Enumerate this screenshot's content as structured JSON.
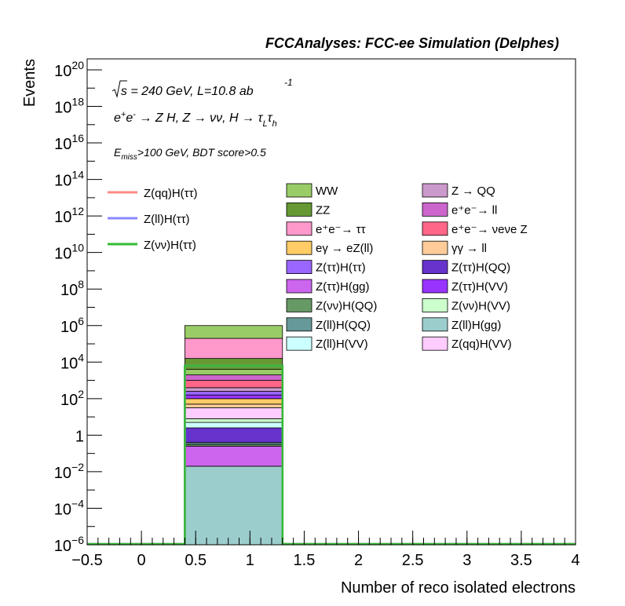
{
  "chart_data": {
    "type": "bar",
    "title": "FCCAnalyses: FCC-ee Simulation (Delphes)",
    "xlabel": "Number of reco isolated electrons",
    "ylabel": "Events",
    "xlim": [
      -0.5,
      4
    ],
    "ylim_log10": [
      -6,
      20.6
    ],
    "log_y": true,
    "grid": false,
    "x_ticks": [
      "−0.5",
      "0",
      "0.5",
      "1",
      "1.5",
      "2",
      "2.5",
      "3",
      "3.5",
      "4"
    ],
    "y_ticks": [
      {
        "base": "10",
        "exp": "20"
      },
      {
        "base": "10",
        "exp": "18"
      },
      {
        "base": "10",
        "exp": "16"
      },
      {
        "base": "10",
        "exp": "14"
      },
      {
        "base": "10",
        "exp": "12"
      },
      {
        "base": "10",
        "exp": "10"
      },
      {
        "base": "10",
        "exp": "8"
      },
      {
        "base": "10",
        "exp": "6"
      },
      {
        "base": "10",
        "exp": "4"
      },
      {
        "base": "10",
        "exp": "2"
      },
      {
        "base": "",
        "exp": "1"
      },
      {
        "base": "10",
        "exp": "−2"
      },
      {
        "base": "10",
        "exp": "−4"
      },
      {
        "base": "10",
        "exp": "−6"
      }
    ],
    "annotations": {
      "energy": "√s = 240 GeV, L=10.8 ab",
      "lumi_exp": "-1",
      "process": "e⁺e⁻ → Z H, Z → νν, H → τLτh",
      "cuts": "Emiss>100 GeV, BDT score>0.5"
    },
    "bin": [
      0.4,
      1.3
    ],
    "stack": [
      {
        "name": "Z(ll)H(gg)",
        "color": "#9ccdcd",
        "bottom_log10": -6.0,
        "top_log10": -1.7
      },
      {
        "name": "Z(ττ)H(gg)",
        "color": "#cc66ee",
        "bottom_log10": -1.7,
        "top_log10": -0.6
      },
      {
        "name": "Z(νν)H(QQ)",
        "color": "#669966",
        "bottom_log10": -0.6,
        "top_log10": -0.5
      },
      {
        "name": "Z(ll)H(QQ)",
        "color": "#669999",
        "bottom_log10": -0.5,
        "top_log10": -0.4
      },
      {
        "name": "Z(ττ)H(QQ)",
        "color": "#6633cc",
        "bottom_log10": -0.4,
        "top_log10": 0.4
      },
      {
        "name": "Z(ll)H(VV)",
        "color": "#ccffff",
        "bottom_log10": 0.4,
        "top_log10": 0.7
      },
      {
        "name": "Z(νν)H(VV)",
        "color": "#ccffcc",
        "bottom_log10": 0.7,
        "top_log10": 0.9
      },
      {
        "name": "Z(qq)H(VV)",
        "color": "#ffccff",
        "bottom_log10": 0.9,
        "top_log10": 1.5
      },
      {
        "name": "γγ → ll",
        "color": "#ffcc99",
        "bottom_log10": 1.5,
        "top_log10": 1.7
      },
      {
        "name": "eγ → eZ(ll)",
        "color": "#ffcc66",
        "bottom_log10": 1.7,
        "top_log10": 2.0
      },
      {
        "name": "Z(ττ)H(VV)",
        "color": "#9933ff",
        "bottom_log10": 2.0,
        "top_log10": 2.2
      },
      {
        "name": "Z(ττ)H(ττ)",
        "color": "#9966ff",
        "bottom_log10": 2.2,
        "top_log10": 2.4
      },
      {
        "name": "Z → QQ",
        "color": "#cc99cc",
        "bottom_log10": 2.4,
        "top_log10": 2.6
      },
      {
        "name": "e⁺e⁻ → νeνe Z",
        "color": "#ff6688",
        "bottom_log10": 2.6,
        "top_log10": 3.0
      },
      {
        "name": "e⁺e⁻ → ll",
        "color": "#cc66cc",
        "bottom_log10": 3.0,
        "top_log10": 3.3
      },
      {
        "name": "WW",
        "color": "#99cc66",
        "bottom_log10": 3.3,
        "top_log10": 3.6
      },
      {
        "name": "ZZ",
        "color": "#669933",
        "bottom_log10": 3.6,
        "top_log10": 4.2
      },
      {
        "name": "e⁺e⁻ → ττ",
        "color": "#ff99cc",
        "bottom_log10": 4.2,
        "top_log10": 5.3
      },
      {
        "name": "WW",
        "color": "#99cc66",
        "bottom_log10": 5.3,
        "top_log10": 6.0
      }
    ],
    "signal_lines": [
      {
        "name": "Z(qq)H(ττ)",
        "color": "#ff8888",
        "value_log10": 3.8
      },
      {
        "name": "Z(ll)H(ττ)",
        "color": "#8888ff",
        "value_log10": 3.8
      },
      {
        "name": "Z(νν)H(ττ)",
        "color": "#33bb33",
        "value_log10": 3.8
      }
    ],
    "legend": {
      "lines": [
        {
          "label": "Z(qq)H(ττ)",
          "color": "#ff8888"
        },
        {
          "label": "Z(ll)H(ττ)",
          "color": "#8888ff"
        },
        {
          "label": "Z(νν)H(ττ)",
          "color": "#33bb33"
        }
      ],
      "col1": [
        {
          "label": "WW",
          "color": "#99cc66"
        },
        {
          "label": "ZZ",
          "color": "#669933"
        },
        {
          "label": "e⁺e⁻→ ττ",
          "color": "#ff99cc"
        },
        {
          "label": "eγ → eZ(ll)",
          "color": "#ffcc66"
        },
        {
          "label": "Z(ττ)H(ττ)",
          "color": "#9966ff"
        },
        {
          "label": "Z(ττ)H(gg)",
          "color": "#cc66ee"
        },
        {
          "label": "Z(νν)H(QQ)",
          "color": "#669966"
        },
        {
          "label": "Z(ll)H(QQ)",
          "color": "#669999"
        },
        {
          "label": "Z(ll)H(VV)",
          "color": "#ccffff"
        }
      ],
      "col2": [
        {
          "label": "Z → QQ",
          "color": "#cc99cc"
        },
        {
          "label": "e⁺e⁻→ ll",
          "color": "#cc66cc"
        },
        {
          "label": "e⁺e⁻→ νeνe Z",
          "color": "#ff6688"
        },
        {
          "label": "γγ → ll",
          "color": "#ffcc99"
        },
        {
          "label": "Z(ττ)H(QQ)",
          "color": "#6633cc"
        },
        {
          "label": "Z(ττ)H(VV)",
          "color": "#9933ff"
        },
        {
          "label": "Z(νν)H(VV)",
          "color": "#ccffcc"
        },
        {
          "label": "Z(ll)H(gg)",
          "color": "#9ccdcd"
        },
        {
          "label": "Z(qq)H(VV)",
          "color": "#ffccff"
        }
      ]
    }
  }
}
